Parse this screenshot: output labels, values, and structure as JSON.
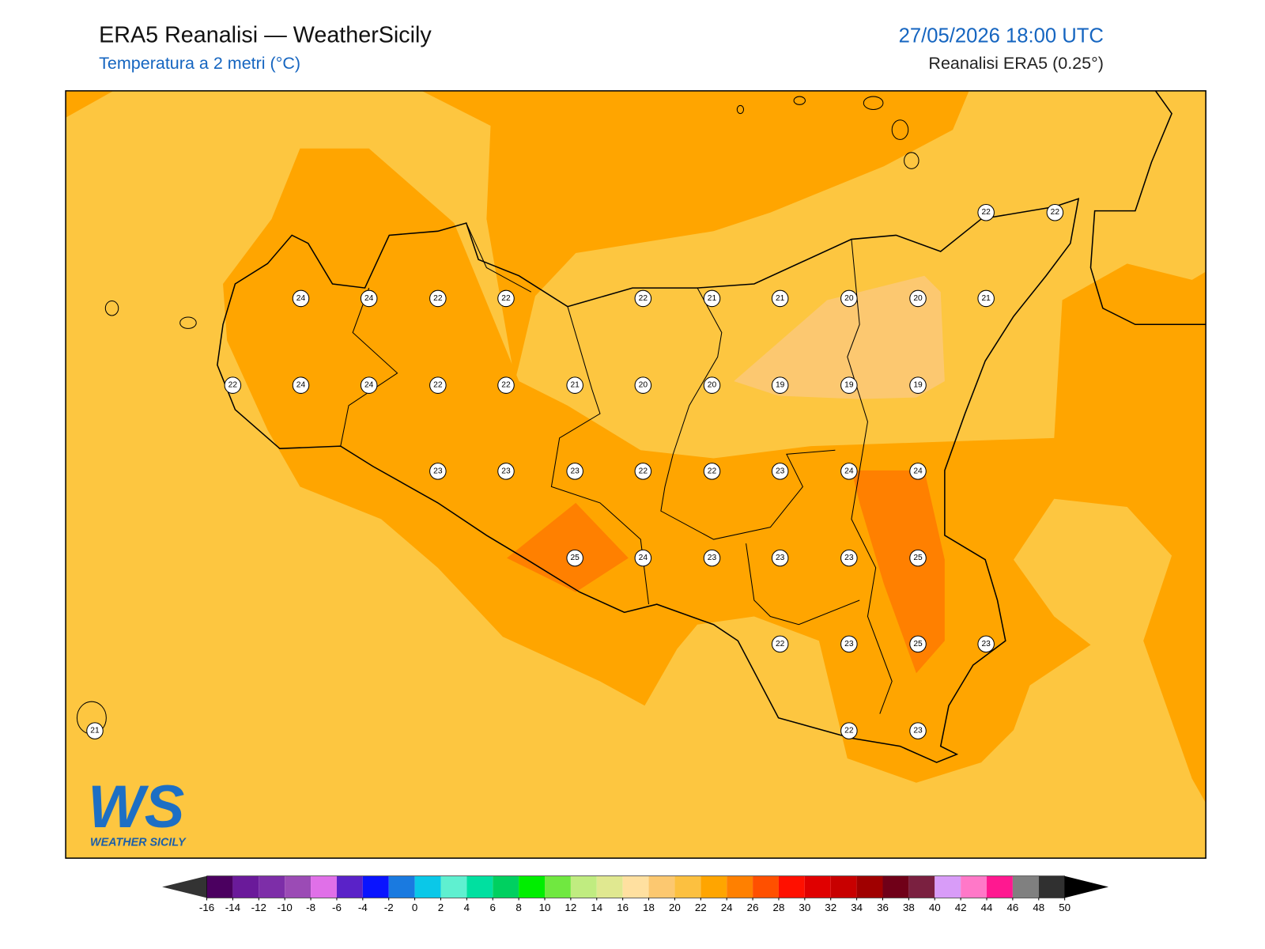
{
  "header": {
    "title": "ERA5 Reanalisi — WeatherSicily",
    "subtitle": "Temperatura a 2 metri (°C)",
    "datetime": "27/05/2026 18:00 UTC",
    "source": "Reanalisi ERA5 (0.25°)"
  },
  "stations": [
    22,
    22,
    24,
    24,
    22,
    22,
    22,
    21,
    21,
    20,
    20,
    21,
    22,
    24,
    24,
    22,
    22,
    21,
    20,
    20,
    19,
    19,
    19,
    23,
    23,
    23,
    22,
    22,
    23,
    24,
    24,
    25,
    24,
    23,
    23,
    23,
    25,
    22,
    23,
    25,
    23,
    21,
    22,
    23
  ],
  "colorbar": {
    "ticks": [
      -16,
      -14,
      -12,
      -10,
      -8,
      -6,
      -4,
      -2,
      0,
      2,
      4,
      6,
      8,
      10,
      12,
      14,
      16,
      18,
      20,
      22,
      24,
      26,
      28,
      30,
      32,
      34,
      36,
      38,
      40,
      42,
      44,
      46,
      48,
      50
    ],
    "colors": [
      "#4b0060",
      "#6a1a9a",
      "#7d2ea8",
      "#9b4bb5",
      "#e070e8",
      "#5a22c8",
      "#0a14ff",
      "#1a7ae0",
      "#0ac8e8",
      "#5ff0d0",
      "#00e0a0",
      "#00d060",
      "#00ee00",
      "#70e840",
      "#c0ec80",
      "#e0e890",
      "#ffe0a0",
      "#fcc870",
      "#fcc040",
      "#ffa500",
      "#ff8000",
      "#ff5000",
      "#ff1000",
      "#e00000",
      "#c80000",
      "#a00000",
      "#700018",
      "#7a2040",
      "#d89cf8",
      "#ff78c8",
      "#ff1890",
      "#808080",
      "#303030"
    ],
    "under_color": "#333333",
    "over_color": "#000000"
  },
  "logo": {
    "initials": "WS",
    "name": "WEATHER SICILY"
  }
}
